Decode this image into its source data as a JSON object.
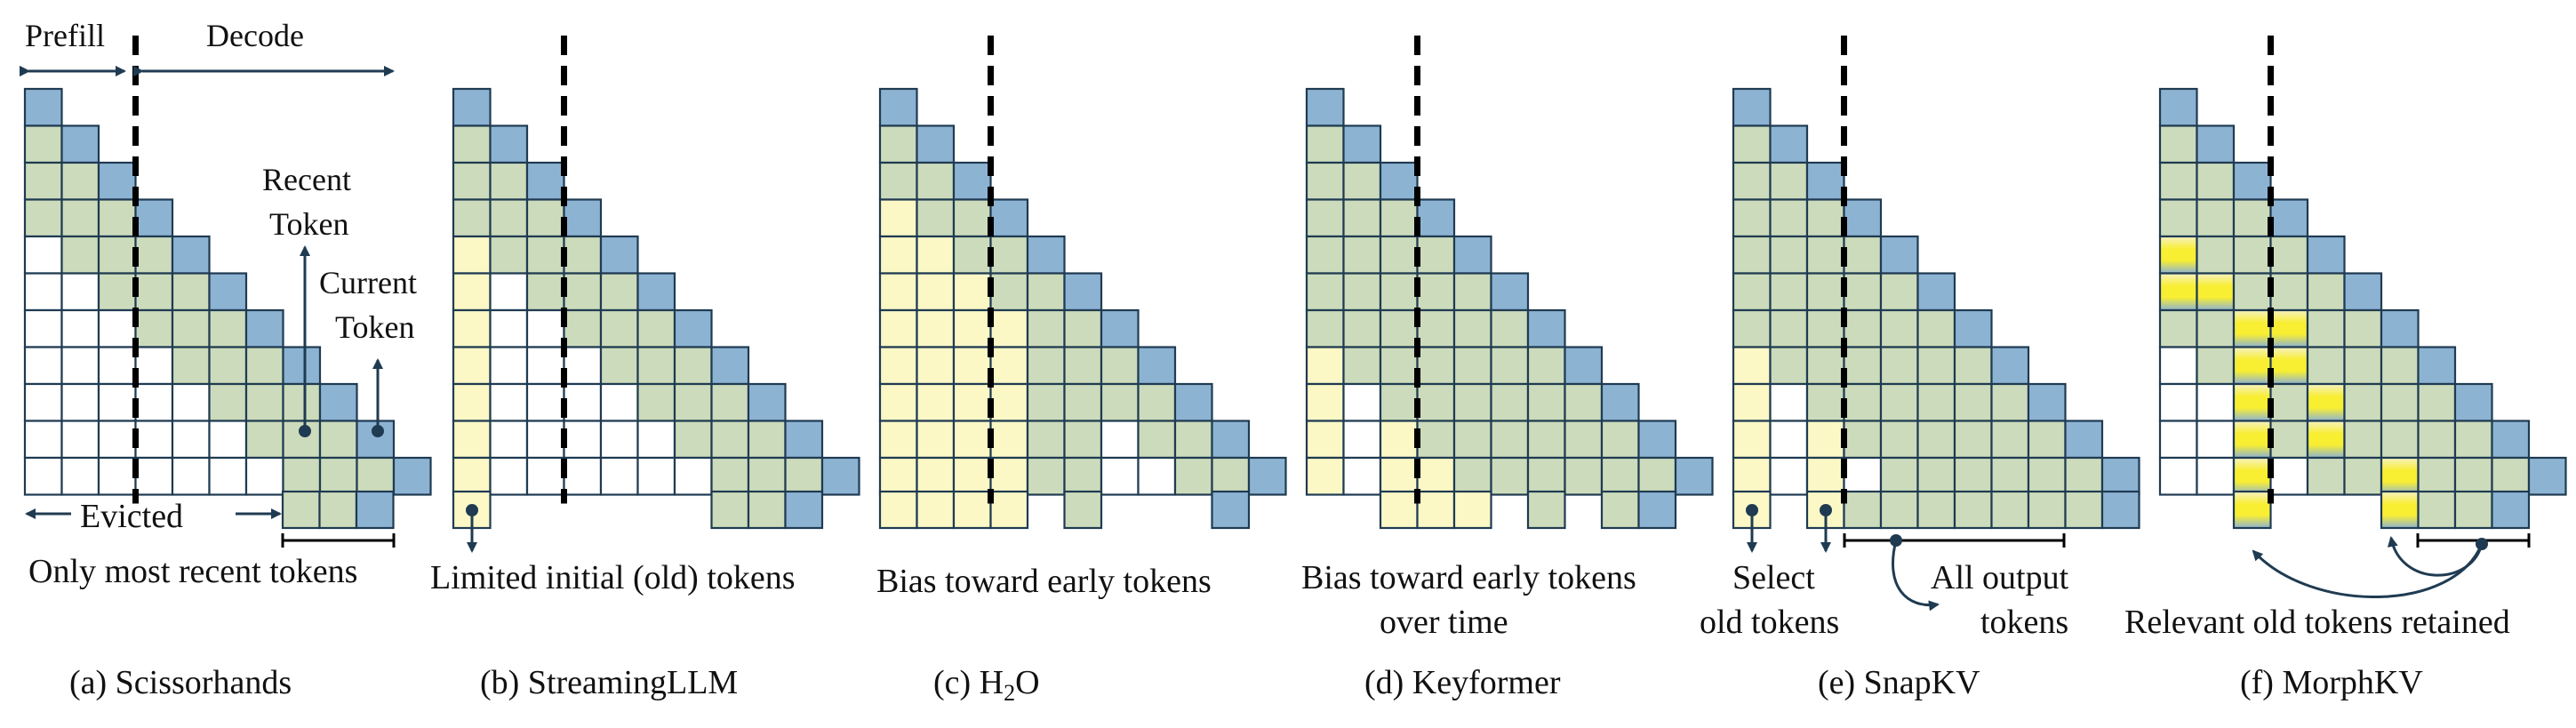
{
  "colors": {
    "blue": "#8DB3D3",
    "green": "#CCDBBB",
    "yellow": "#FBF8C6",
    "white": "#FFFFFF",
    "stroke": "#1F3B52",
    "arrow": "#1F3B52",
    "bright_yellow": "#F8EE32"
  },
  "grid_size": 11,
  "prefill_cols": 3,
  "header": {
    "prefill": "Prefill",
    "decode": "Decode"
  },
  "panels": [
    {
      "key": "a",
      "caption": "(a) Scissorhands",
      "desc": [
        "Only most recent tokens"
      ],
      "legend": {
        "evicted": "Evicted"
      },
      "annotations": {
        "recent": [
          "Recent",
          "Token"
        ],
        "current": [
          "Current",
          "Token"
        ]
      },
      "green_mode": "window",
      "window": 3,
      "yellow_cols": [],
      "bottom": [
        "green",
        "green",
        "blue"
      ]
    },
    {
      "key": "b",
      "caption": "(b) StreamingLLM",
      "desc": [
        "Limited initial (old) tokens"
      ],
      "green_mode": "window",
      "window": 3,
      "yellow_cols": [
        0
      ],
      "bottom": [
        "yellow",
        null,
        null,
        null,
        null,
        null,
        null,
        "green",
        "green",
        "blue"
      ]
    },
    {
      "key": "c",
      "caption": "(c) H",
      "caption_sub": "2",
      "caption_tail": "O",
      "desc": [
        "Bias toward early tokens"
      ],
      "green_mode": "cols",
      "green_cols": [
        4,
        5
      ],
      "window": 2,
      "yellow_cols": [
        0,
        1,
        2,
        3
      ],
      "bottom": [
        "yellow",
        "yellow",
        "yellow",
        "yellow",
        null,
        "green",
        null,
        null,
        null,
        "blue"
      ]
    },
    {
      "key": "d",
      "caption": "(d) Keyformer",
      "desc": [
        "Bias toward early tokens",
        "over time"
      ],
      "green_mode": "window",
      "window": 6,
      "yellow_cols": [
        0,
        2,
        3
      ],
      "bottom": [
        null,
        null,
        "yellow",
        "yellow",
        "yellow",
        null,
        "green",
        null,
        "green",
        "blue"
      ]
    },
    {
      "key": "e",
      "caption": "(e) SnapKV",
      "desc": [
        "Select",
        "old tokens"
      ],
      "desc2": [
        "All output",
        "tokens"
      ],
      "green_mode": "window",
      "window": 6,
      "yellow_cols": [
        0,
        2
      ],
      "bottom": [
        "yellow",
        null,
        "yellow",
        "green",
        "green",
        "green",
        "green",
        "green",
        "green",
        "green",
        "blue"
      ]
    },
    {
      "key": "f",
      "caption": "(f) MorphKV",
      "desc": [
        "Relevant old tokens retained"
      ],
      "green_mode": "window",
      "window": 6,
      "yellow_cols": [],
      "bright_cells": [
        [
          4,
          0
        ],
        [
          5,
          0
        ],
        [
          5,
          1
        ],
        [
          6,
          2
        ],
        [
          6,
          3
        ],
        [
          7,
          3
        ],
        [
          7,
          2
        ],
        [
          8,
          2
        ],
        [
          8,
          4
        ],
        [
          9,
          2
        ],
        [
          9,
          4
        ],
        [
          10,
          2
        ],
        [
          10,
          6
        ]
      ],
      "bottom": [
        null,
        null,
        "bright",
        null,
        null,
        null,
        "bright",
        "green",
        "green",
        "blue"
      ]
    }
  ]
}
